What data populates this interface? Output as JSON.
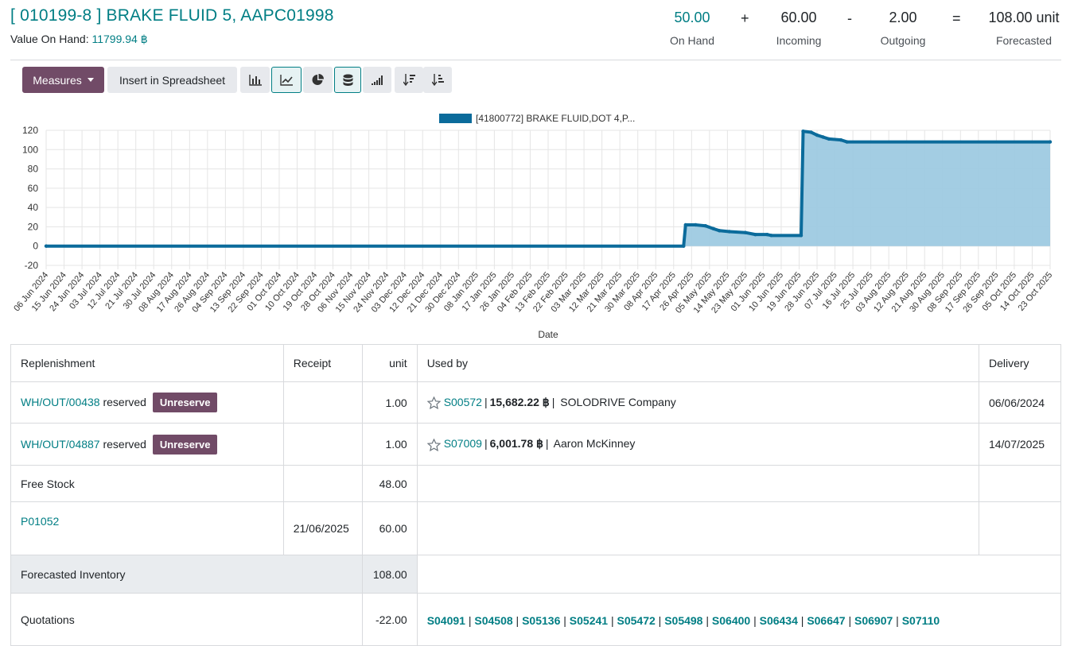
{
  "header": {
    "title": "[ 010199-8 ] BRAKE FLUID 5, AAPC01998",
    "value_on_hand_label": "Value On Hand:",
    "value_on_hand": "11799.94 ฿",
    "stats": {
      "on_hand": {
        "value": "50.00",
        "label": "On Hand"
      },
      "plus": "+",
      "incoming": {
        "value": "60.00",
        "label": "Incoming"
      },
      "minus": "-",
      "outgoing": {
        "value": "2.00",
        "label": "Outgoing"
      },
      "equals": "=",
      "forecasted": {
        "value": "108.00 unit",
        "label": "Forecasted"
      }
    }
  },
  "toolbar": {
    "measures_label": "Measures",
    "insert_label": "Insert in Spreadsheet",
    "icons": [
      "bar-chart-icon",
      "line-chart-icon",
      "pie-chart-icon",
      "stacked-icon",
      "cumulative-icon",
      "sort-descending-icon",
      "sort-ascending-icon"
    ]
  },
  "chart_data": {
    "type": "area",
    "legend": "[41800772] BRAKE FLUID,DOT 4,P...",
    "xlabel": "Date",
    "ylabel": "",
    "ylim": [
      -20,
      120
    ],
    "yticks": [
      120,
      100,
      80,
      60,
      40,
      20,
      0,
      -20
    ],
    "xticks": [
      "06 Jun 2024",
      "15 Jun 2024",
      "24 Jun 2024",
      "03 Jul 2024",
      "12 Jul 2024",
      "21 Jul 2024",
      "30 Jul 2024",
      "08 Aug 2024",
      "17 Aug 2024",
      "26 Aug 2024",
      "04 Sep 2024",
      "13 Sep 2024",
      "22 Sep 2024",
      "01 Oct 2024",
      "10 Oct 2024",
      "19 Oct 2024",
      "28 Oct 2024",
      "06 Nov 2024",
      "15 Nov 2024",
      "24 Nov 2024",
      "03 Dec 2024",
      "12 Dec 2024",
      "21 Dec 2024",
      "30 Dec 2024",
      "08 Jan 2025",
      "17 Jan 2025",
      "26 Jan 2025",
      "04 Feb 2025",
      "13 Feb 2025",
      "22 Feb 2025",
      "03 Mar 2025",
      "12 Mar 2025",
      "21 Mar 2025",
      "30 Mar 2025",
      "08 Apr 2025",
      "17 Apr 2025",
      "26 Apr 2025",
      "05 May 2025",
      "14 May 2025",
      "23 May 2025",
      "01 Jun 2025",
      "10 Jun 2025",
      "19 Jun 2025",
      "28 Jun 2025",
      "07 Jul 2025",
      "16 Jul 2025",
      "25 Jul 2025",
      "03 Aug 2025",
      "12 Aug 2025",
      "21 Aug 2025",
      "30 Aug 2025",
      "08 Sep 2025",
      "17 Sep 2025",
      "26 Sep 2025",
      "05 Oct 2025",
      "14 Oct 2025",
      "23 Oct 2025"
    ],
    "series": [
      {
        "name": "[41800772] BRAKE FLUID,DOT 4,P...",
        "color": "#0b6b9b",
        "fill": "#9ecae1",
        "points": [
          [
            "06 Jun 2024",
            0
          ],
          [
            "22 Apr 2025",
            0
          ],
          [
            "23 Apr 2025",
            22
          ],
          [
            "28 Apr 2025",
            22
          ],
          [
            "03 May 2025",
            21
          ],
          [
            "07 May 2025",
            18
          ],
          [
            "10 May 2025",
            16
          ],
          [
            "15 May 2025",
            15
          ],
          [
            "23 May 2025",
            14
          ],
          [
            "28 May 2025",
            12
          ],
          [
            "03 Jun 2025",
            12
          ],
          [
            "05 Jun 2025",
            11
          ],
          [
            "20 Jun 2025",
            11
          ],
          [
            "21 Jun 2025",
            119
          ],
          [
            "25 Jun 2025",
            118
          ],
          [
            "28 Jun 2025",
            115
          ],
          [
            "01 Jul 2025",
            113
          ],
          [
            "04 Jul 2025",
            111
          ],
          [
            "10 Jul 2025",
            110
          ],
          [
            "13 Jul 2025",
            108
          ],
          [
            "23 Oct 2025",
            108
          ]
        ]
      }
    ],
    "grid": true,
    "legend_position": "top-center"
  },
  "table": {
    "headers": {
      "replenishment": "Replenishment",
      "receipt": "Receipt",
      "unit": "unit",
      "used_by": "Used by",
      "delivery": "Delivery"
    },
    "rows": [
      {
        "ref": "WH/OUT/00438",
        "state": "reserved",
        "action": "Unreserve",
        "unit": "1.00",
        "order": "S00572",
        "amount": "15,682.22 ฿",
        "customer": "SOLODRIVE Company",
        "delivery": "06/06/2024"
      },
      {
        "ref": "WH/OUT/04887",
        "state": "reserved",
        "action": "Unreserve",
        "unit": "1.00",
        "order": "S07009",
        "amount": "6,001.78 ฿",
        "customer": "Aaron McKinney",
        "delivery": "14/07/2025"
      }
    ],
    "free_stock": {
      "label": "Free Stock",
      "unit": "48.00"
    },
    "purchase": {
      "ref": "P01052",
      "receipt": "21/06/2025",
      "unit": "60.00"
    },
    "forecasted": {
      "label": "Forecasted Inventory",
      "unit": "108.00"
    },
    "quotations": {
      "label": "Quotations",
      "unit": "-22.00",
      "refs": [
        "S04091",
        "S04508",
        "S05136",
        "S05241",
        "S05472",
        "S05498",
        "S06400",
        "S06434",
        "S06647",
        "S06907",
        "S07110"
      ]
    }
  }
}
